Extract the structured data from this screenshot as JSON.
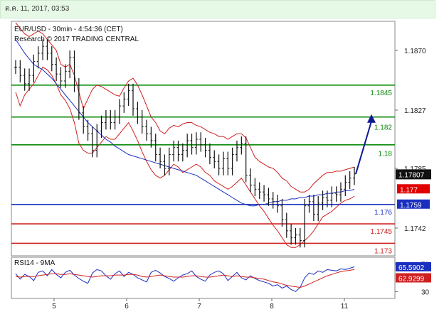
{
  "timestamp": "ต.ค. 11, 2017, 03:53",
  "chart_data": [
    {
      "type": "line",
      "title": "EUR/USD - 30min - 4:54:36 (CET)",
      "subtitle": "Research © 2017 TRADING CENTRAL",
      "x_ticks": [
        "5",
        "6",
        "7",
        "8",
        "11"
      ],
      "y_ticks": [
        "1.1870",
        "1.1827",
        "1.1785",
        "1.1742"
      ],
      "ylim": [
        1.1722,
        1.1891
      ],
      "grid": false,
      "last_price": "1.17807",
      "levels": [
        {
          "label": "1.1845",
          "value": 1.1845,
          "color": "#0a8a0a"
        },
        {
          "label": "1.182",
          "value": 1.182,
          "color": "#0a8a0a"
        },
        {
          "label": "1.18",
          "value": 1.1801,
          "color": "#0a8a0a"
        },
        {
          "label": "1.177",
          "value": 1.177,
          "color": "#ffffff",
          "boxed": "#e00000"
        },
        {
          "label": "1.176",
          "value": 1.1759,
          "color": "#1a2fc0"
        },
        {
          "label": "1.1759",
          "value": 1.1759,
          "color": "#ffffff",
          "boxed": "#1a2fc0"
        },
        {
          "label": "1.1745",
          "value": 1.1745,
          "color": "#d02020"
        },
        {
          "label": "1.173",
          "value": 1.1731,
          "color": "#d02020"
        }
      ],
      "lines": [
        {
          "value": 1.1845,
          "color": "#0a8a0a"
        },
        {
          "value": 1.1822,
          "color": "#0a8a0a"
        },
        {
          "value": 1.1802,
          "color": "#0a8a0a"
        },
        {
          "value": 1.1759,
          "color": "#1a2fc0"
        },
        {
          "value": 1.1745,
          "color": "#d02020"
        },
        {
          "value": 1.1731,
          "color": "#d02020"
        }
      ],
      "price_series": [
        1.1858,
        1.1852,
        1.1846,
        1.1852,
        1.1862,
        1.1868,
        1.1873,
        1.1868,
        1.186,
        1.1853,
        1.1848,
        1.1855,
        1.1865,
        1.1845,
        1.1825,
        1.1815,
        1.181,
        1.1798,
        1.1812,
        1.1818,
        1.1822,
        1.1818,
        1.1822,
        1.183,
        1.1835,
        1.1841,
        1.1828,
        1.1822,
        1.1815,
        1.181,
        1.1805,
        1.1795,
        1.179,
        1.1785,
        1.1795,
        1.18,
        1.1795,
        1.1798,
        1.1805,
        1.18,
        1.1806,
        1.1802,
        1.1798,
        1.1793,
        1.179,
        1.1785,
        1.1792,
        1.1785,
        1.1795,
        1.18,
        1.1803,
        1.178,
        1.1773,
        1.177,
        1.1768,
        1.1766,
        1.1763,
        1.1761,
        1.1758,
        1.1748,
        1.174,
        1.1735,
        1.1737,
        1.1733,
        1.1758,
        1.1761,
        1.1752,
        1.176,
        1.1764,
        1.1762,
        1.1767,
        1.1766,
        1.177,
        1.1775,
        1.1778,
        1.1781
      ],
      "bb_upper": [
        1.189,
        1.1886,
        1.1882,
        1.188,
        1.1882,
        1.1884,
        1.1882,
        1.1878,
        1.1874,
        1.187,
        1.186,
        1.1858,
        1.186,
        1.1852,
        1.184,
        1.1828,
        1.1835,
        1.1842,
        1.1845,
        1.1844,
        1.1842,
        1.184,
        1.1838,
        1.1837,
        1.1843,
        1.1848,
        1.185,
        1.1845,
        1.1838,
        1.183,
        1.1822,
        1.1818,
        1.1812,
        1.181,
        1.1814,
        1.1816,
        1.1815,
        1.1817,
        1.1818,
        1.1818,
        1.1816,
        1.1815,
        1.1813,
        1.1811,
        1.181,
        1.1808,
        1.1808,
        1.1806,
        1.1808,
        1.181,
        1.181,
        1.1807,
        1.18,
        1.1793,
        1.179,
        1.1788,
        1.1786,
        1.1785,
        1.1782,
        1.1778,
        1.1776,
        1.1772,
        1.177,
        1.1768,
        1.1768,
        1.177,
        1.1774,
        1.1777,
        1.178,
        1.1782,
        1.1782,
        1.1783,
        1.1783,
        1.1784,
        1.1785,
        1.1786
      ],
      "bb_lower": [
        1.184,
        1.183,
        1.1838,
        1.1842,
        1.1846,
        1.1852,
        1.1858,
        1.1856,
        1.1852,
        1.1846,
        1.1838,
        1.1834,
        1.1828,
        1.1818,
        1.1803,
        1.1798,
        1.1796,
        1.1796,
        1.18,
        1.1804,
        1.1808,
        1.1806,
        1.1806,
        1.181,
        1.1814,
        1.1818,
        1.1812,
        1.1805,
        1.1797,
        1.179,
        1.1784,
        1.178,
        1.1778,
        1.178,
        1.1784,
        1.1788,
        1.1786,
        1.1782,
        1.1784,
        1.1786,
        1.1788,
        1.1786,
        1.1782,
        1.178,
        1.1776,
        1.1774,
        1.1772,
        1.177,
        1.1772,
        1.1775,
        1.1778,
        1.1773,
        1.1768,
        1.1763,
        1.1758,
        1.1754,
        1.1749,
        1.1744,
        1.174,
        1.1735,
        1.173,
        1.1728,
        1.1728,
        1.173,
        1.1733,
        1.1736,
        1.174,
        1.1745,
        1.175,
        1.1752,
        1.1754,
        1.1757,
        1.176,
        1.1762,
        1.1763,
        1.1765
      ],
      "ma_series": [
        1.1878,
        1.1873,
        1.1868,
        1.1864,
        1.186,
        1.1858,
        1.1856,
        1.1853,
        1.185,
        1.1846,
        1.1842,
        1.1838,
        1.1834,
        1.183,
        1.1826,
        1.1822,
        1.1818,
        1.1815,
        1.1812,
        1.1809,
        1.1806,
        1.1804,
        1.1801,
        1.1799,
        1.1797,
        1.1795,
        1.1794,
        1.1793,
        1.1792,
        1.1791,
        1.179,
        1.1789,
        1.1788,
        1.1787,
        1.1786,
        1.1785,
        1.1784,
        1.1783,
        1.1782,
        1.1781,
        1.178,
        1.1778,
        1.1776,
        1.1774,
        1.1772,
        1.177,
        1.1768,
        1.1766,
        1.1764,
        1.1762,
        1.176,
        1.1759,
        1.1758,
        1.1758,
        1.1759,
        1.1759,
        1.176,
        1.1761,
        1.1761,
        1.1762,
        1.1762,
        1.1763,
        1.1763,
        1.1764,
        1.1764,
        1.1765,
        1.1765,
        1.1766,
        1.1766,
        1.1767,
        1.1767,
        1.1768,
        1.1768,
        1.1769,
        1.1769,
        1.177
      ],
      "forecast": [
        [
          1.1781,
          1.1781
        ],
        [
          1.1822,
          1.1822
        ]
      ]
    },
    {
      "type": "line",
      "title": "RSI14 - 9MA",
      "y_ticks": [
        "70",
        "30"
      ],
      "ylim": [
        20,
        80
      ],
      "rsi_value": "65.5902",
      "ma_value": "62.9299",
      "series": [
        {
          "name": "RSI14",
          "color": "#1a2fc0",
          "values": [
            56,
            48,
            55,
            52,
            46,
            58,
            60,
            53,
            62,
            55,
            50,
            58,
            61,
            54,
            49,
            45,
            42,
            57,
            62,
            60,
            53,
            48,
            56,
            60,
            52,
            58,
            55,
            50,
            47,
            44,
            58,
            61,
            57,
            52,
            49,
            45,
            50,
            54,
            56,
            60,
            52,
            48,
            45,
            54,
            58,
            60,
            56,
            46,
            52,
            58,
            50,
            47,
            53,
            49,
            46,
            44,
            42,
            38,
            40,
            35,
            38,
            33,
            30,
            36,
            50,
            57,
            55,
            60,
            58,
            62,
            61,
            60,
            63,
            62,
            64,
            66
          ]
        },
        {
          "name": "9MA",
          "color": "#d02020",
          "values": [
            52,
            51,
            52,
            52,
            52,
            53,
            54,
            55,
            56,
            56,
            55,
            55,
            56,
            55,
            54,
            53,
            52,
            51,
            52,
            53,
            53,
            53,
            54,
            54,
            54,
            55,
            55,
            54,
            52,
            51,
            52,
            53,
            54,
            53,
            52,
            51,
            51,
            51,
            52,
            53,
            53,
            52,
            51,
            51,
            52,
            53,
            54,
            53,
            52,
            53,
            52,
            51,
            51,
            50,
            49,
            48,
            46,
            44,
            43,
            41,
            39,
            38,
            37,
            36,
            38,
            41,
            44,
            47,
            50,
            53,
            55,
            57,
            59,
            60,
            61,
            62
          ]
        }
      ]
    }
  ]
}
